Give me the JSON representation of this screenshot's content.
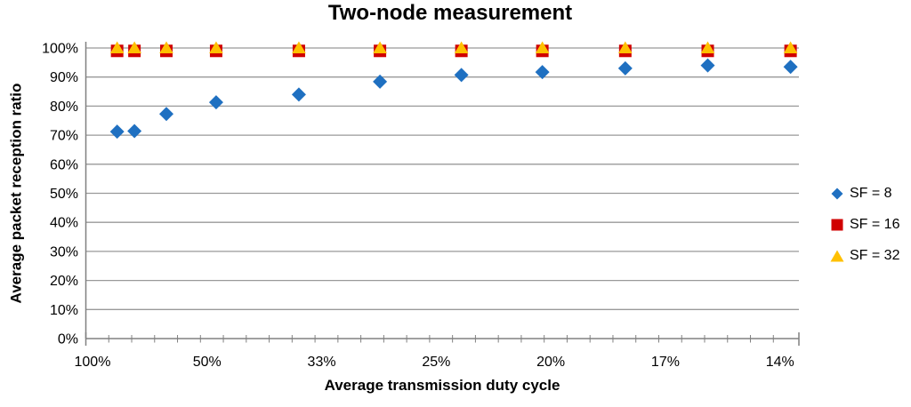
{
  "chart_data": {
    "type": "scatter",
    "title": "Two-node measurement",
    "xlabel": "Average transmission duty cycle",
    "ylabel": "Average packet reception ratio",
    "x_axis": {
      "scale": "reciprocal (axis linear in 1/x, decreasing duty cycle to the right)",
      "tick_labels": [
        "100%",
        "50%",
        "33%",
        "25%",
        "20%",
        "17%",
        "14%"
      ],
      "tick_values_percent": [
        100,
        50,
        33,
        25,
        20,
        17,
        14
      ],
      "range_reciprocal": [
        0.942,
        7.165
      ],
      "minor_tick_step_reciprocal": 0.2
    },
    "y_axis": {
      "tick_labels": [
        "0%",
        "10%",
        "20%",
        "30%",
        "40%",
        "50%",
        "60%",
        "70%",
        "80%",
        "90%",
        "100%"
      ],
      "tick_values_percent": [
        0,
        10,
        20,
        30,
        40,
        50,
        60,
        70,
        80,
        90,
        100
      ],
      "range_percent": [
        0,
        100
      ],
      "gridlines": "horizontal"
    },
    "x_duty_cycle_percent": [
      82.3,
      73.2,
      60.8,
      48.1,
      35.7,
      28.5,
      23.7,
      20.3,
      17.7,
      15.7,
      14.1
    ],
    "series": [
      {
        "name": "SF = 8",
        "marker": "diamond",
        "color": "#1F70C1",
        "values_percent": [
          71.2,
          71.4,
          77.3,
          81.3,
          84.0,
          88.4,
          90.7,
          91.7,
          93.0,
          94.0,
          93.5
        ]
      },
      {
        "name": "SF = 16",
        "marker": "square",
        "color": "#D00000",
        "values_percent": [
          99,
          99,
          99,
          99,
          99,
          99,
          99,
          99,
          99,
          99,
          99
        ]
      },
      {
        "name": "SF = 32",
        "marker": "triangle",
        "color": "#FFC000",
        "values_percent": [
          100,
          100,
          100,
          100,
          100,
          100,
          100,
          100,
          100,
          100,
          100
        ]
      }
    ],
    "legend_position": "right",
    "colors": {
      "gridline": "#999999",
      "axis": "#808080",
      "text": "#000000"
    }
  }
}
